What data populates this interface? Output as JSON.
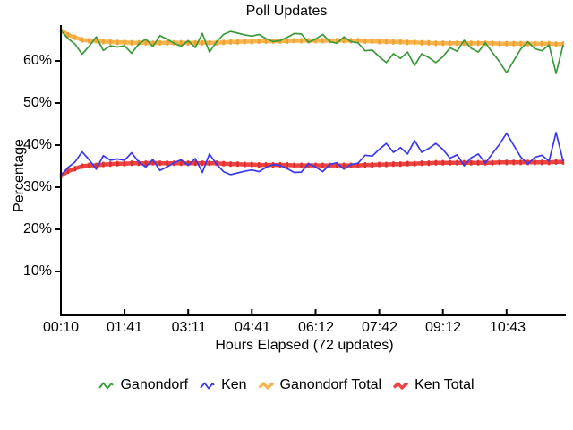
{
  "chart_data": {
    "type": "line",
    "title": "Poll Updates",
    "xlabel": "Hours Elapsed (72 updates)",
    "ylabel": "Percentage",
    "grid": false,
    "legend_position": "bottom",
    "n_points": 72,
    "ylim": [
      0,
      68.5
    ],
    "y_tick_labels": [
      "10%",
      "20%",
      "30%",
      "40%",
      "50%",
      "60%"
    ],
    "y_tick_values": [
      10,
      20,
      30,
      40,
      50,
      60
    ],
    "x_tick_labels": [
      "00:10",
      "01:41",
      "03:11",
      "04:41",
      "06:12",
      "07:42",
      "09:12",
      "10:43"
    ],
    "x_tick_indices": [
      0,
      9,
      18,
      27,
      36,
      45,
      54,
      63
    ],
    "axis_color": "#000000",
    "series": [
      {
        "name": "Ganondorf",
        "color": "#3a9a3a",
        "width": 1.7,
        "marker_color": null,
        "values": [
          67.2,
          65.3,
          64.0,
          61.6,
          63.5,
          65.7,
          62.5,
          63.6,
          63.3,
          63.6,
          61.8,
          64.0,
          65.2,
          63.4,
          66.0,
          65.2,
          64.2,
          63.5,
          64.8,
          63.2,
          66.5,
          62.1,
          64.5,
          66.3,
          67.0,
          66.6,
          66.2,
          65.9,
          66.3,
          65.3,
          64.6,
          64.8,
          65.6,
          66.5,
          66.4,
          64.4,
          65.2,
          66.3,
          64.6,
          64.2,
          65.7,
          64.6,
          64.3,
          62.4,
          62.6,
          61.0,
          59.6,
          61.7,
          60.6,
          62.1,
          58.9,
          61.7,
          60.8,
          59.6,
          61.0,
          63.1,
          62.3,
          64.9,
          63.0,
          62.1,
          64.3,
          62.0,
          59.8,
          57.2,
          60.0,
          62.8,
          64.5,
          62.9,
          62.4,
          63.8,
          57.0,
          63.8
        ]
      },
      {
        "name": "Ken",
        "color": "#3a3ae8",
        "width": 1.7,
        "marker_color": null,
        "values": [
          32.8,
          34.7,
          36.0,
          38.4,
          36.5,
          34.3,
          37.5,
          36.4,
          36.7,
          36.4,
          38.2,
          36.0,
          34.8,
          36.6,
          34.0,
          34.8,
          35.8,
          36.5,
          35.2,
          36.8,
          33.5,
          37.9,
          35.5,
          33.7,
          33.0,
          33.4,
          33.8,
          34.1,
          33.7,
          34.7,
          35.4,
          35.2,
          34.4,
          33.5,
          33.6,
          35.6,
          34.8,
          33.7,
          35.4,
          35.8,
          34.3,
          35.4,
          35.7,
          37.6,
          37.4,
          39.0,
          40.4,
          38.3,
          39.4,
          37.9,
          41.1,
          38.3,
          39.2,
          40.4,
          39.0,
          36.9,
          37.7,
          35.1,
          37.0,
          37.9,
          35.7,
          38.0,
          40.2,
          42.8,
          40.0,
          37.2,
          35.5,
          37.1,
          37.6,
          36.2,
          43.0,
          36.2
        ]
      },
      {
        "name": "Ganondorf Total",
        "color": "#f9b44e",
        "width": 4.5,
        "marker_color": "#eda232",
        "values": [
          67.3,
          66.2,
          65.6,
          65.0,
          64.8,
          64.8,
          64.6,
          64.5,
          64.4,
          64.4,
          64.3,
          64.3,
          64.3,
          64.2,
          64.3,
          64.3,
          64.3,
          64.3,
          64.3,
          64.3,
          64.3,
          64.3,
          64.3,
          64.4,
          64.5,
          64.5,
          64.6,
          64.6,
          64.7,
          64.7,
          64.7,
          64.7,
          64.7,
          64.8,
          64.8,
          64.8,
          64.8,
          64.8,
          64.8,
          64.8,
          64.8,
          64.8,
          64.8,
          64.7,
          64.7,
          64.6,
          64.6,
          64.5,
          64.5,
          64.4,
          64.4,
          64.3,
          64.3,
          64.2,
          64.2,
          64.2,
          64.2,
          64.2,
          64.2,
          64.2,
          64.2,
          64.2,
          64.1,
          64.1,
          64.1,
          64.1,
          64.1,
          64.1,
          64.1,
          64.1,
          64.0,
          64.0
        ]
      },
      {
        "name": "Ken Total",
        "color": "#ee4341",
        "width": 4.5,
        "marker_color": "#dc2f2f",
        "values": [
          32.7,
          33.8,
          34.4,
          35.0,
          35.2,
          35.2,
          35.4,
          35.5,
          35.6,
          35.6,
          35.7,
          35.7,
          35.7,
          35.8,
          35.7,
          35.7,
          35.7,
          35.7,
          35.7,
          35.7,
          35.7,
          35.7,
          35.7,
          35.6,
          35.5,
          35.5,
          35.4,
          35.4,
          35.3,
          35.3,
          35.3,
          35.3,
          35.3,
          35.2,
          35.2,
          35.2,
          35.2,
          35.2,
          35.2,
          35.2,
          35.2,
          35.2,
          35.2,
          35.3,
          35.3,
          35.4,
          35.4,
          35.5,
          35.5,
          35.6,
          35.6,
          35.7,
          35.7,
          35.8,
          35.8,
          35.8,
          35.8,
          35.8,
          35.8,
          35.8,
          35.8,
          35.8,
          35.9,
          35.9,
          35.9,
          35.9,
          35.9,
          35.9,
          35.9,
          35.9,
          36.0,
          36.0
        ]
      }
    ]
  }
}
